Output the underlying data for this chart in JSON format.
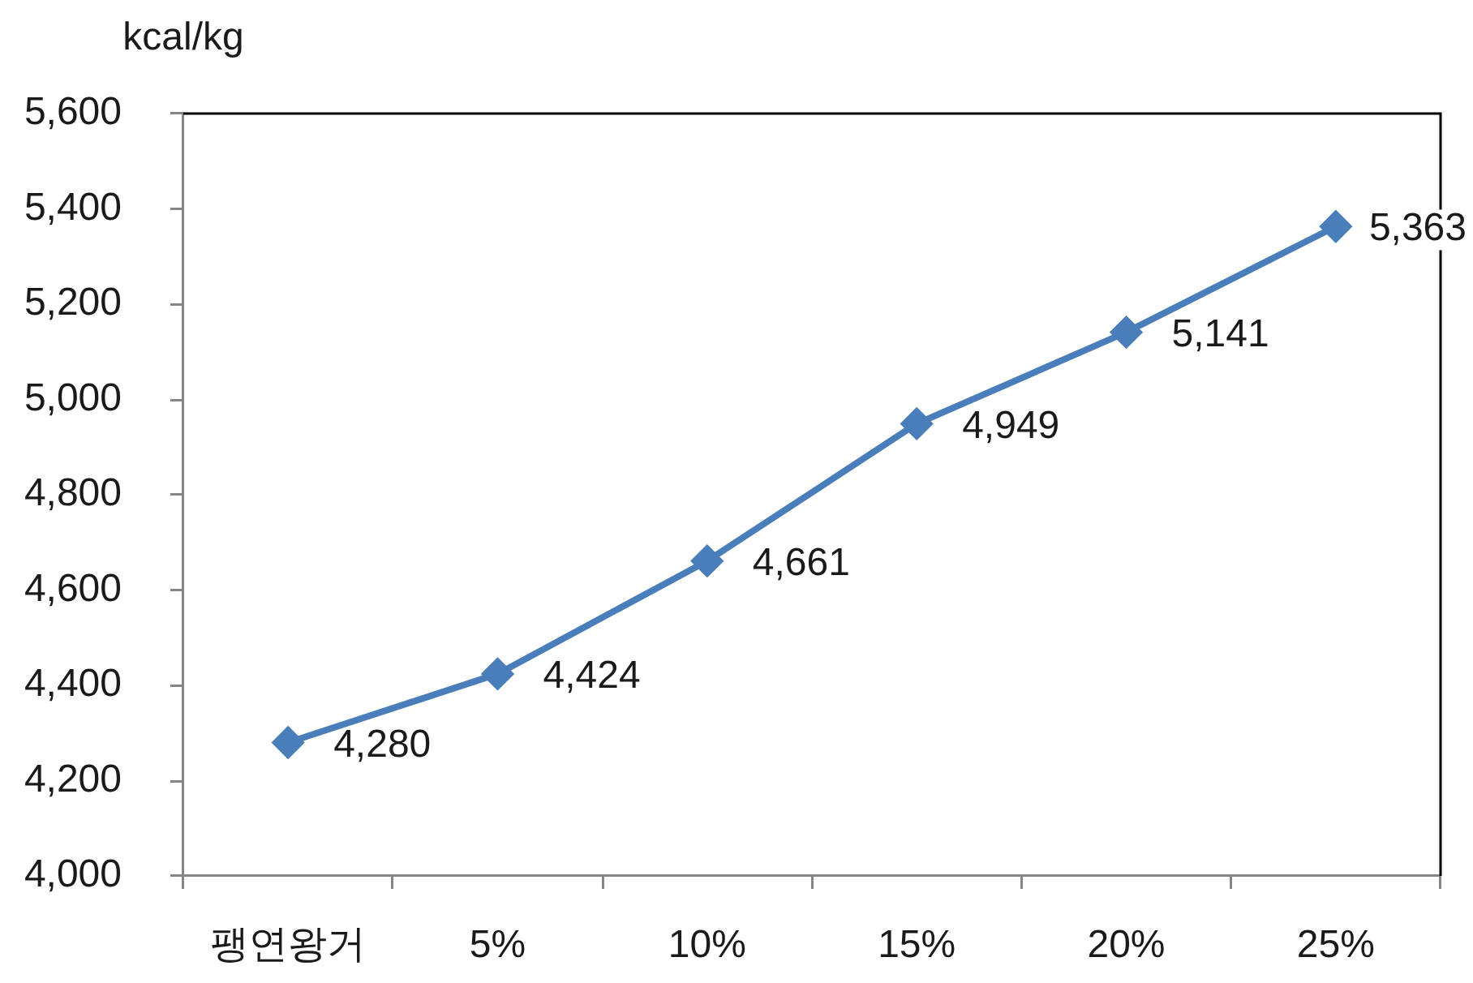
{
  "chart_data": {
    "type": "line",
    "ylabel": "kcal/kg",
    "categories": [
      "팽연왕거",
      "5%",
      "10%",
      "15%",
      "20%",
      "25%"
    ],
    "values": [
      4280,
      4424,
      4661,
      4949,
      5141,
      5363
    ],
    "color": "#4a7ebb",
    "value_labels": [
      "4,280",
      "4,424",
      "4,661",
      "4,949",
      "5,141",
      "5,363"
    ],
    "ylim": [
      4000,
      5600
    ],
    "yticks": [
      {
        "value": 4000,
        "label": "4,000"
      },
      {
        "value": 4200,
        "label": "4,200"
      },
      {
        "value": 4400,
        "label": "4,400"
      },
      {
        "value": 4600,
        "label": "4,600"
      },
      {
        "value": 4800,
        "label": "4,800"
      },
      {
        "value": 5000,
        "label": "5,000"
      },
      {
        "value": 5200,
        "label": "5,200"
      },
      {
        "value": 5400,
        "label": "5,400"
      },
      {
        "value": 5600,
        "label": "5,600"
      }
    ],
    "grid": false,
    "legend": false,
    "marker": "diamond",
    "line_style": "solid"
  }
}
